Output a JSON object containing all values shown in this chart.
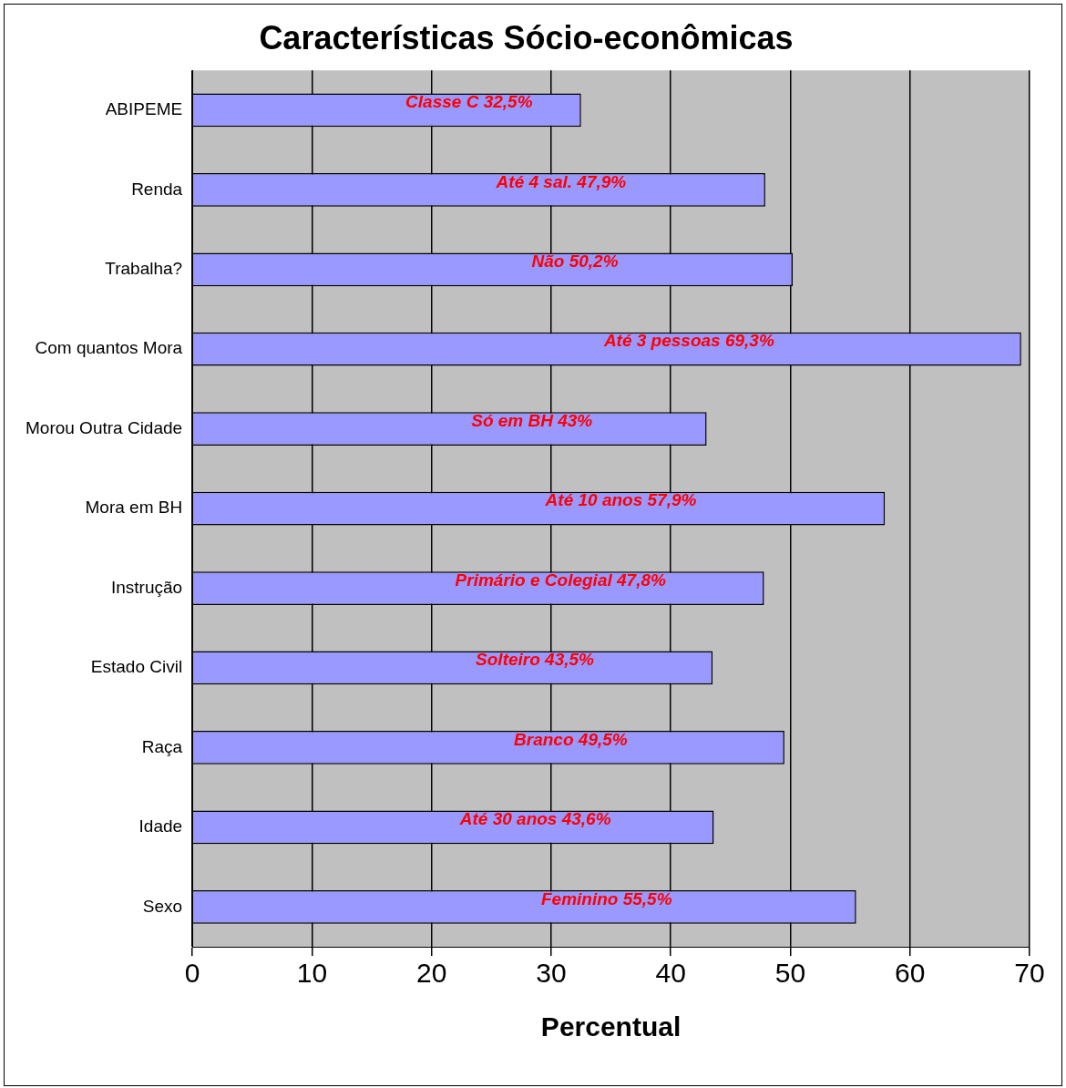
{
  "chart_data": {
    "type": "bar",
    "orientation": "horizontal",
    "title": "Características Sócio-econômicas",
    "xlabel": "Percentual",
    "categories": [
      "ABIPEME",
      "Renda",
      "Trabalha?",
      "Com quantos Mora",
      "Morou Outra Cidade",
      "Mora em BH",
      "Instrução",
      "Estado Civil",
      "Raça",
      "Idade",
      "Sexo"
    ],
    "values": [
      32.5,
      47.9,
      50.2,
      69.3,
      43,
      57.9,
      47.8,
      43.5,
      49.5,
      43.6,
      55.5
    ],
    "value_labels": [
      "Classe C 32,5%",
      "Até 4 sal. 47,9%",
      "Não 50,2%",
      "Até 3 pessoas 69,3%",
      "Só em BH 43%",
      "Até 10 anos 57,9%",
      "Primário e Colegial 47,8%",
      "Solteiro 43,5%",
      "Branco 49,5%",
      "Até 30 anos 43,6%",
      "Feminino 55,5%"
    ],
    "color": "#9999ff",
    "xlim": [
      0,
      70
    ],
    "xticks": [
      0,
      10,
      20,
      30,
      40,
      50,
      60,
      70
    ],
    "grid": "x",
    "legend": false
  }
}
